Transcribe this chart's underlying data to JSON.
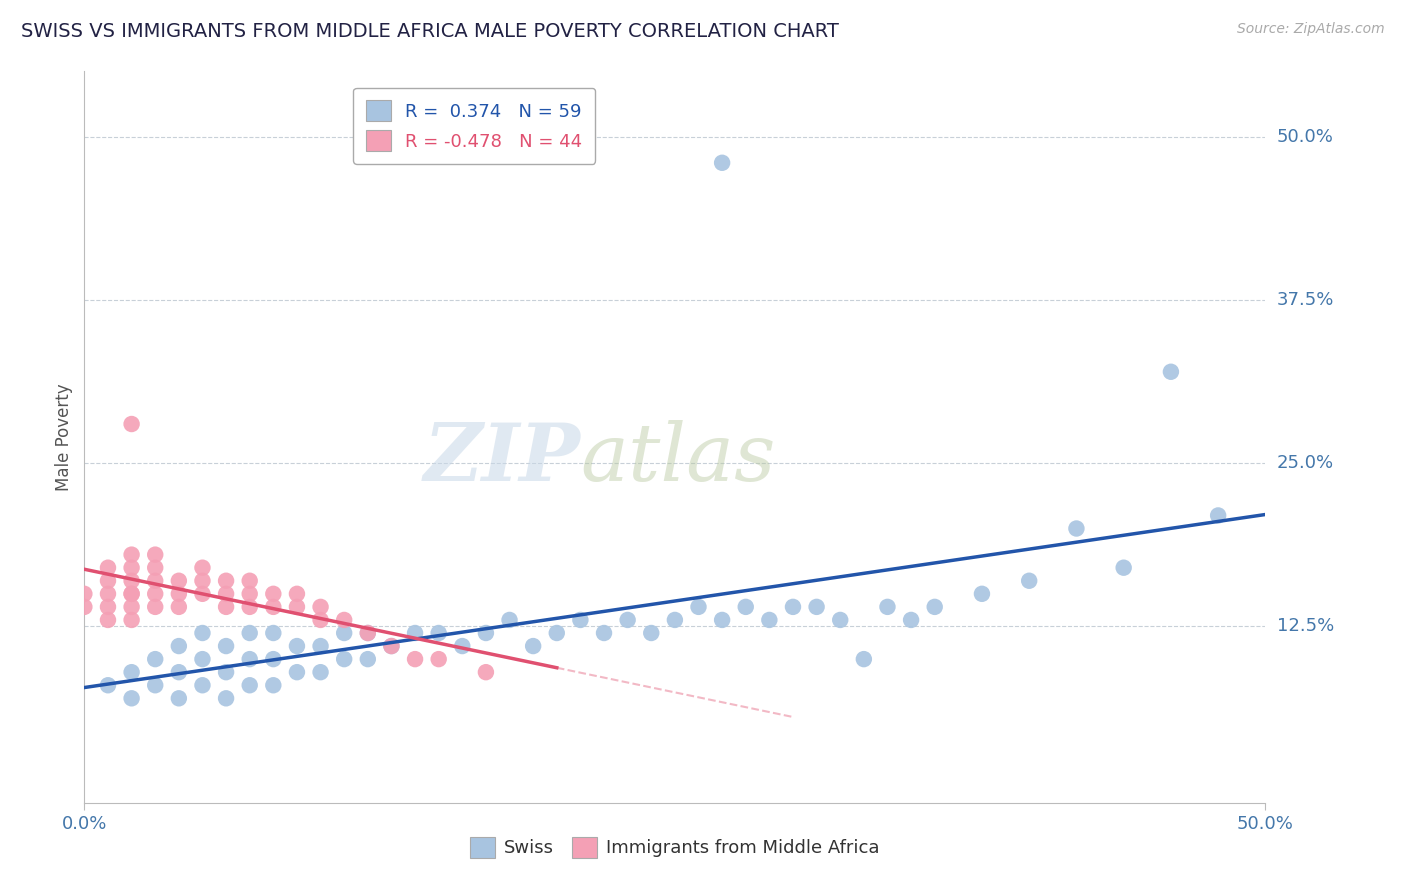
{
  "title": "SWISS VS IMMIGRANTS FROM MIDDLE AFRICA MALE POVERTY CORRELATION CHART",
  "source": "Source: ZipAtlas.com",
  "ylabel": "Male Poverty",
  "ytick_labels": [
    "12.5%",
    "25.0%",
    "37.5%",
    "50.0%"
  ],
  "ytick_values": [
    0.125,
    0.25,
    0.375,
    0.5
  ],
  "xmin": 0.0,
  "xmax": 0.5,
  "ymin": -0.01,
  "ymax": 0.55,
  "swiss_R": 0.374,
  "swiss_N": 59,
  "immig_R": -0.478,
  "immig_N": 44,
  "swiss_color": "#a8c4e0",
  "immig_color": "#f4a0b5",
  "line_swiss_color": "#2255aa",
  "line_immig_color": "#e05070",
  "swiss_x": [
    0.01,
    0.02,
    0.02,
    0.03,
    0.03,
    0.04,
    0.04,
    0.04,
    0.05,
    0.05,
    0.05,
    0.06,
    0.06,
    0.06,
    0.07,
    0.07,
    0.07,
    0.08,
    0.08,
    0.08,
    0.09,
    0.09,
    0.1,
    0.1,
    0.11,
    0.11,
    0.12,
    0.12,
    0.13,
    0.14,
    0.15,
    0.16,
    0.17,
    0.18,
    0.19,
    0.2,
    0.21,
    0.22,
    0.23,
    0.24,
    0.25,
    0.26,
    0.27,
    0.28,
    0.29,
    0.3,
    0.31,
    0.32,
    0.33,
    0.34,
    0.35,
    0.36,
    0.38,
    0.4,
    0.42,
    0.44,
    0.46,
    0.48,
    0.27
  ],
  "swiss_y": [
    0.08,
    0.07,
    0.09,
    0.08,
    0.1,
    0.07,
    0.09,
    0.11,
    0.08,
    0.1,
    0.12,
    0.07,
    0.09,
    0.11,
    0.08,
    0.1,
    0.12,
    0.08,
    0.1,
    0.12,
    0.09,
    0.11,
    0.09,
    0.11,
    0.1,
    0.12,
    0.1,
    0.12,
    0.11,
    0.12,
    0.12,
    0.11,
    0.12,
    0.13,
    0.11,
    0.12,
    0.13,
    0.12,
    0.13,
    0.12,
    0.13,
    0.14,
    0.13,
    0.14,
    0.13,
    0.14,
    0.14,
    0.13,
    0.1,
    0.14,
    0.13,
    0.14,
    0.15,
    0.16,
    0.2,
    0.17,
    0.32,
    0.21,
    0.48
  ],
  "immig_x": [
    0.0,
    0.0,
    0.01,
    0.01,
    0.01,
    0.01,
    0.01,
    0.02,
    0.02,
    0.02,
    0.02,
    0.02,
    0.02,
    0.02,
    0.03,
    0.03,
    0.03,
    0.03,
    0.03,
    0.04,
    0.04,
    0.04,
    0.05,
    0.05,
    0.05,
    0.06,
    0.06,
    0.06,
    0.07,
    0.07,
    0.07,
    0.08,
    0.08,
    0.09,
    0.09,
    0.1,
    0.1,
    0.11,
    0.12,
    0.13,
    0.14,
    0.15,
    0.17,
    0.02
  ],
  "immig_y": [
    0.14,
    0.15,
    0.13,
    0.14,
    0.15,
    0.16,
    0.17,
    0.13,
    0.14,
    0.15,
    0.16,
    0.17,
    0.18,
    0.15,
    0.14,
    0.15,
    0.16,
    0.17,
    0.18,
    0.14,
    0.15,
    0.16,
    0.15,
    0.16,
    0.17,
    0.14,
    0.15,
    0.16,
    0.14,
    0.15,
    0.16,
    0.14,
    0.15,
    0.14,
    0.15,
    0.13,
    0.14,
    0.13,
    0.12,
    0.11,
    0.1,
    0.1,
    0.09,
    0.28
  ],
  "immig_line_xmax": 0.2
}
